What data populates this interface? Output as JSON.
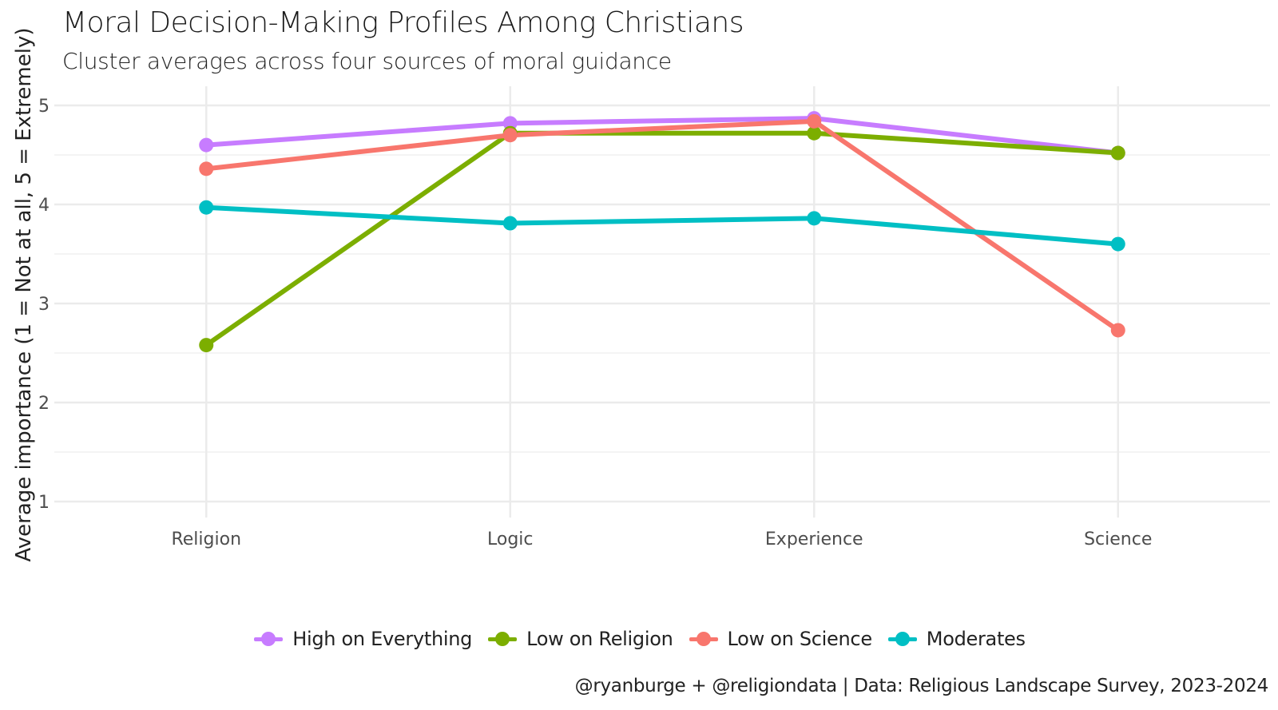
{
  "title": "Moral Decision-Making Profiles Among Christians",
  "subtitle": "Cluster averages across four sources of moral guidance",
  "caption": "@ryanburge + @religiondata | Data: Religious Landscape Survey, 2023-2024",
  "chart_data": {
    "type": "line",
    "title": "Moral Decision-Making Profiles Among Christians",
    "subtitle": "Cluster averages across four sources of moral guidance",
    "xlabel": "",
    "ylabel": "Average importance (1 = Not at all, 5 = Extremely)",
    "categories": [
      "Religion",
      "Logic",
      "Experience",
      "Science"
    ],
    "ylim": [
      1,
      5
    ],
    "yticks": [
      1,
      2,
      3,
      4,
      5
    ],
    "grid": true,
    "legend_position": "bottom",
    "series": [
      {
        "name": "High on Everything",
        "color": "#C77CFF",
        "values": [
          4.6,
          4.82,
          4.87,
          4.52
        ]
      },
      {
        "name": "Low on Religion",
        "color": "#7CAE00",
        "values": [
          2.58,
          4.72,
          4.72,
          4.52
        ]
      },
      {
        "name": "Low on Science",
        "color": "#F8766D",
        "values": [
          4.36,
          4.7,
          4.84,
          2.73
        ]
      },
      {
        "name": "Moderates",
        "color": "#00BFC4",
        "values": [
          3.97,
          3.81,
          3.86,
          3.6
        ]
      }
    ]
  }
}
